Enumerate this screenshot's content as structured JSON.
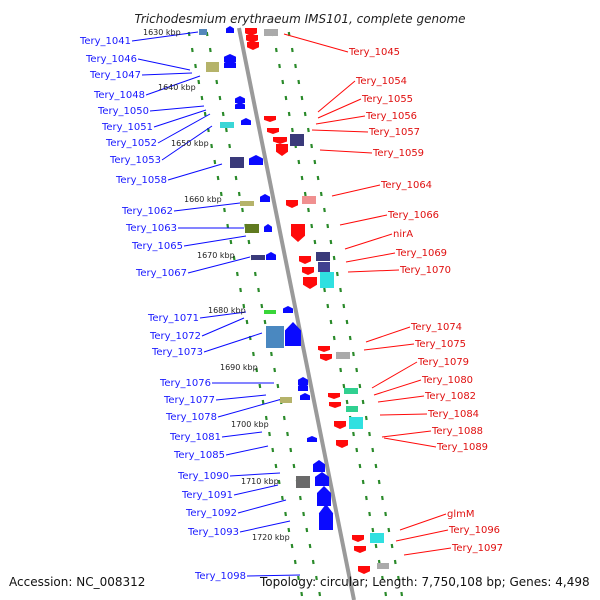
{
  "header": {
    "title": "Trichodesmium erythraeum IMS101, complete genome"
  },
  "footer": {
    "accession": "Accession: NC_008312",
    "summary": "Topology: circular; Length: 7,750,108 bp; Genes: 4,498"
  },
  "colors": {
    "forward_label": "#1a1aff",
    "reverse_label": "#e01010",
    "forward_arrow": "#0a0aff",
    "reverse_arrow": "#ff0a0a",
    "backbone": "#9a9a9a",
    "tick": "#2a8a2a"
  },
  "scale": {
    "unit": "kbp",
    "ticks": [
      "1630 kbp",
      "1640 kbp",
      "1650 kbp",
      "1660 kbp",
      "1670 kbp",
      "1680 kbp",
      "1690 kbp",
      "1700 kbp",
      "1710 kbp",
      "1720 kbp"
    ]
  },
  "forward_genes": [
    "Tery_1041",
    "Tery_1046",
    "Tery_1047",
    "Tery_1048",
    "Tery_1050",
    "Tery_1051",
    "Tery_1052",
    "Tery_1053",
    "Tery_1058",
    "Tery_1062",
    "Tery_1063",
    "Tery_1065",
    "Tery_1067",
    "Tery_1071",
    "Tery_1072",
    "Tery_1073",
    "Tery_1076",
    "Tery_1077",
    "Tery_1078",
    "Tery_1081",
    "Tery_1085",
    "Tery_1090",
    "Tery_1091",
    "Tery_1092",
    "Tery_1093",
    "Tery_1098"
  ],
  "reverse_genes": [
    "Tery_1045",
    "Tery_1054",
    "Tery_1055",
    "Tery_1056",
    "Tery_1057",
    "Tery_1059",
    "Tery_1064",
    "Tery_1066",
    "nirA",
    "Tery_1069",
    "Tery_1070",
    "Tery_1074",
    "Tery_1075",
    "Tery_1079",
    "Tery_1080",
    "Tery_1082",
    "Tery_1084",
    "Tery_1088",
    "Tery_1089",
    "glmM",
    "Tery_1096",
    "Tery_1097"
  ]
}
